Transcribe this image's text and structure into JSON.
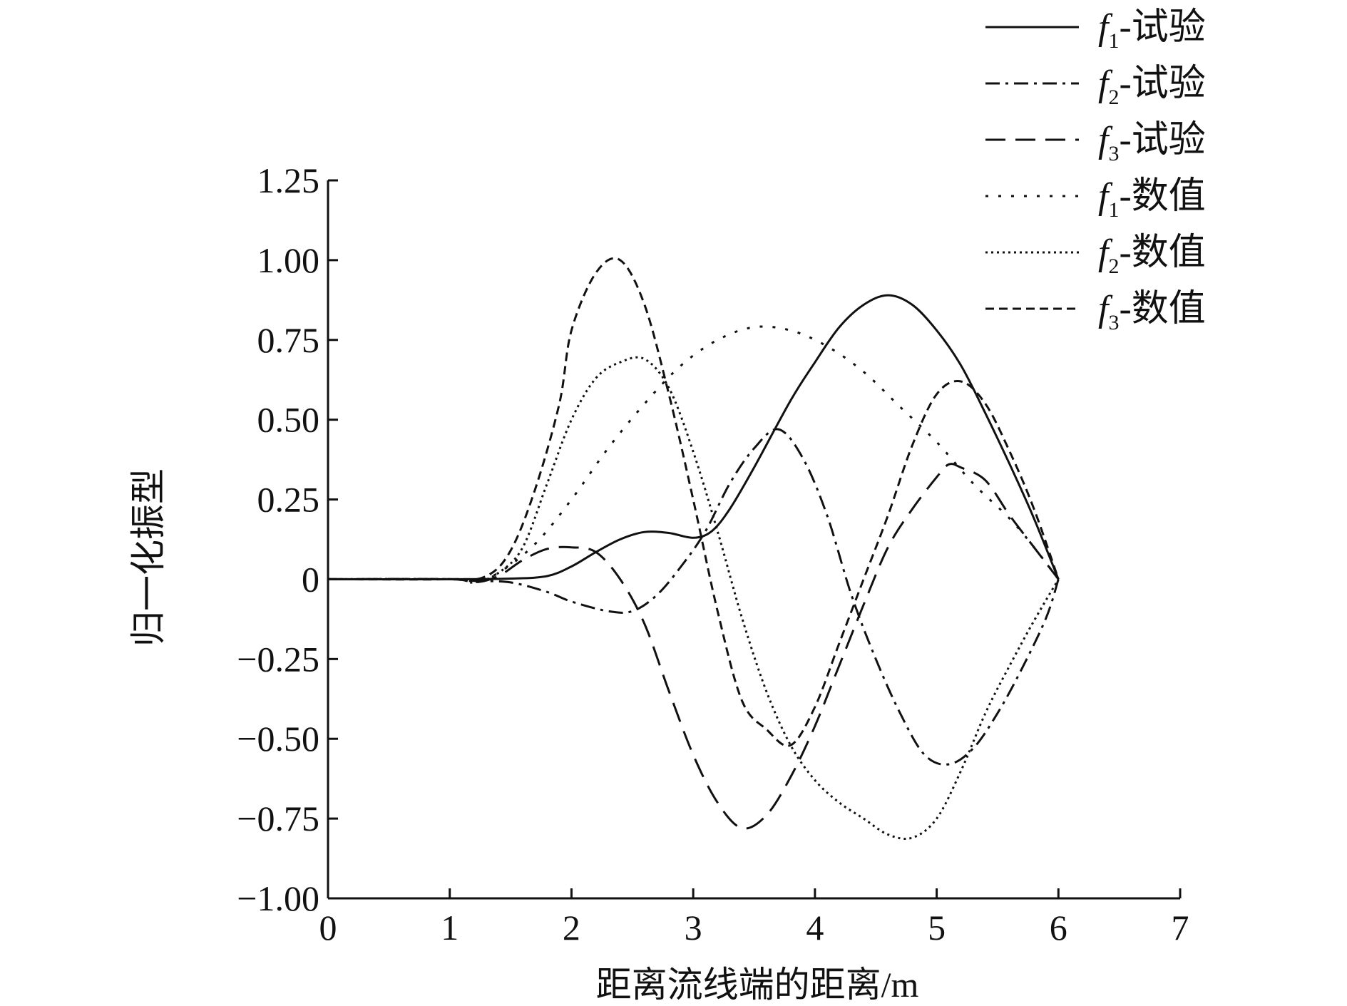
{
  "chart_data": {
    "type": "line",
    "title": "",
    "xlabel": "距离流线端的距离/m",
    "ylabel": "归一化振型",
    "xlim": [
      0,
      7
    ],
    "ylim": [
      -1.0,
      1.25
    ],
    "x_ticks": [
      "0",
      "1",
      "2",
      "3",
      "4",
      "5",
      "6",
      "7"
    ],
    "y_ticks": [
      "−1.00",
      "−0.75",
      "−0.50",
      "−0.25",
      "0",
      "0.25",
      "0.50",
      "0.75",
      "1.00",
      "1.25"
    ],
    "grid": false,
    "legend_position": "top-right",
    "series": [
      {
        "name": "-试验",
        "sub": "1",
        "style": "solid",
        "points": [
          [
            0,
            0
          ],
          [
            1,
            0
          ],
          [
            1.5,
            0.002
          ],
          [
            1.8,
            0.01
          ],
          [
            2.0,
            0.04
          ],
          [
            2.2,
            0.085
          ],
          [
            2.4,
            0.125
          ],
          [
            2.6,
            0.148
          ],
          [
            2.8,
            0.145
          ],
          [
            3.0,
            0.13
          ],
          [
            3.15,
            0.15
          ],
          [
            3.3,
            0.22
          ],
          [
            3.5,
            0.35
          ],
          [
            3.8,
            0.56
          ],
          [
            4.0,
            0.68
          ],
          [
            4.2,
            0.79
          ],
          [
            4.4,
            0.86
          ],
          [
            4.6,
            0.89
          ],
          [
            4.8,
            0.86
          ],
          [
            5.0,
            0.78
          ],
          [
            5.2,
            0.67
          ],
          [
            5.4,
            0.52
          ],
          [
            5.6,
            0.36
          ],
          [
            5.8,
            0.19
          ],
          [
            6.0,
            0
          ]
        ]
      },
      {
        "name": "-试验",
        "sub": "2",
        "style": "dashdot",
        "points": [
          [
            0,
            0
          ],
          [
            1,
            0
          ],
          [
            1.2,
            -0.005
          ],
          [
            1.5,
            -0.01
          ],
          [
            1.8,
            -0.04
          ],
          [
            2.0,
            -0.07
          ],
          [
            2.3,
            -0.1
          ],
          [
            2.5,
            -0.1
          ],
          [
            2.7,
            -0.05
          ],
          [
            2.9,
            0.04
          ],
          [
            3.1,
            0.15
          ],
          [
            3.3,
            0.3
          ],
          [
            3.5,
            0.41
          ],
          [
            3.7,
            0.47
          ],
          [
            3.9,
            0.38
          ],
          [
            4.1,
            0.2
          ],
          [
            4.3,
            -0.05
          ],
          [
            4.5,
            -0.25
          ],
          [
            4.7,
            -0.42
          ],
          [
            4.9,
            -0.55
          ],
          [
            5.1,
            -0.58
          ],
          [
            5.3,
            -0.53
          ],
          [
            5.5,
            -0.42
          ],
          [
            5.7,
            -0.28
          ],
          [
            5.9,
            -0.12
          ],
          [
            6.0,
            0
          ]
        ]
      },
      {
        "name": "-试验",
        "sub": "3",
        "style": "longdash",
        "points": [
          [
            0,
            0
          ],
          [
            1,
            0
          ],
          [
            1.2,
            -0.01
          ],
          [
            1.4,
            0.01
          ],
          [
            1.6,
            0.06
          ],
          [
            1.8,
            0.095
          ],
          [
            2.0,
            0.1
          ],
          [
            2.2,
            0.085
          ],
          [
            2.4,
            0.0
          ],
          [
            2.6,
            -0.14
          ],
          [
            2.8,
            -0.35
          ],
          [
            3.0,
            -0.55
          ],
          [
            3.2,
            -0.7
          ],
          [
            3.4,
            -0.78
          ],
          [
            3.6,
            -0.74
          ],
          [
            3.8,
            -0.62
          ],
          [
            4.0,
            -0.46
          ],
          [
            4.2,
            -0.27
          ],
          [
            4.4,
            -0.08
          ],
          [
            4.6,
            0.1
          ],
          [
            4.8,
            0.22
          ],
          [
            5.0,
            0.32
          ],
          [
            5.1,
            0.36
          ],
          [
            5.2,
            0.35
          ],
          [
            5.4,
            0.31
          ],
          [
            5.6,
            0.2
          ],
          [
            5.8,
            0.1
          ],
          [
            6.0,
            0
          ]
        ]
      },
      {
        "name": "-数值",
        "sub": "1",
        "style": "dotted-sparse",
        "points": [
          [
            0,
            0
          ],
          [
            1,
            0
          ],
          [
            1.2,
            -0.005
          ],
          [
            1.4,
            0.02
          ],
          [
            1.7,
            0.11
          ],
          [
            2.0,
            0.25
          ],
          [
            2.3,
            0.41
          ],
          [
            2.6,
            0.55
          ],
          [
            2.9,
            0.67
          ],
          [
            3.2,
            0.75
          ],
          [
            3.5,
            0.79
          ],
          [
            3.8,
            0.78
          ],
          [
            4.1,
            0.73
          ],
          [
            4.4,
            0.65
          ],
          [
            4.7,
            0.54
          ],
          [
            5.0,
            0.43
          ],
          [
            5.3,
            0.3
          ],
          [
            5.6,
            0.19
          ],
          [
            5.8,
            0.1
          ],
          [
            6.0,
            0
          ]
        ]
      },
      {
        "name": "-数值",
        "sub": "2",
        "style": "dotted-dense",
        "points": [
          [
            0,
            0
          ],
          [
            1,
            0
          ],
          [
            1.2,
            -0.01
          ],
          [
            1.4,
            0.02
          ],
          [
            1.6,
            0.1
          ],
          [
            1.8,
            0.3
          ],
          [
            2.0,
            0.5
          ],
          [
            2.2,
            0.63
          ],
          [
            2.4,
            0.68
          ],
          [
            2.6,
            0.69
          ],
          [
            2.8,
            0.6
          ],
          [
            3.0,
            0.4
          ],
          [
            3.2,
            0.15
          ],
          [
            3.4,
            -0.12
          ],
          [
            3.6,
            -0.35
          ],
          [
            3.8,
            -0.52
          ],
          [
            4.0,
            -0.63
          ],
          [
            4.2,
            -0.7
          ],
          [
            4.4,
            -0.75
          ],
          [
            4.6,
            -0.8
          ],
          [
            4.8,
            -0.81
          ],
          [
            5.0,
            -0.75
          ],
          [
            5.2,
            -0.6
          ],
          [
            5.4,
            -0.42
          ],
          [
            5.6,
            -0.27
          ],
          [
            5.8,
            -0.13
          ],
          [
            6.0,
            0
          ]
        ]
      },
      {
        "name": "-数值",
        "sub": "3",
        "style": "shortdash",
        "points": [
          [
            0,
            0
          ],
          [
            1,
            0
          ],
          [
            1.3,
            0.01
          ],
          [
            1.5,
            0.09
          ],
          [
            1.7,
            0.28
          ],
          [
            1.9,
            0.55
          ],
          [
            2.0,
            0.78
          ],
          [
            2.2,
            0.96
          ],
          [
            2.4,
            1.0
          ],
          [
            2.6,
            0.86
          ],
          [
            2.8,
            0.58
          ],
          [
            3.0,
            0.25
          ],
          [
            3.2,
            -0.1
          ],
          [
            3.4,
            -0.38
          ],
          [
            3.6,
            -0.47
          ],
          [
            3.8,
            -0.52
          ],
          [
            4.0,
            -0.4
          ],
          [
            4.2,
            -0.2
          ],
          [
            4.4,
            0.0
          ],
          [
            4.6,
            0.2
          ],
          [
            4.8,
            0.42
          ],
          [
            5.0,
            0.58
          ],
          [
            5.2,
            0.62
          ],
          [
            5.4,
            0.55
          ],
          [
            5.6,
            0.4
          ],
          [
            5.8,
            0.22
          ],
          [
            6.0,
            0
          ]
        ]
      }
    ]
  }
}
